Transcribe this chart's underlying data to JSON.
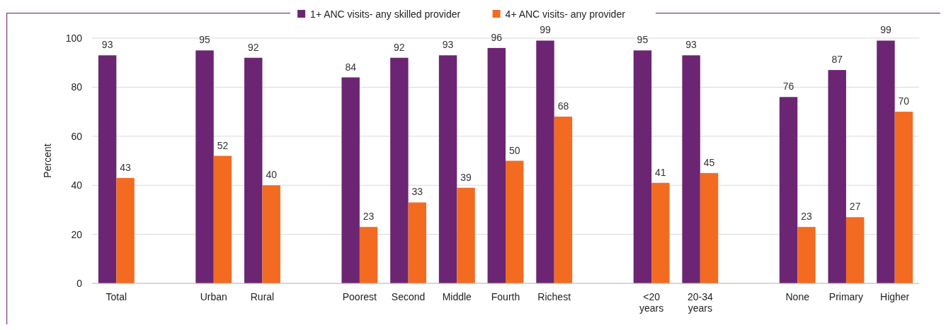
{
  "chart_data": {
    "type": "bar",
    "ylabel": "Percent",
    "categories": [
      "Total",
      null,
      "Urban",
      "Rural",
      null,
      "Poorest",
      "Second",
      "Middle",
      "Fourth",
      "Richest",
      null,
      "<20 years",
      "20-34 years",
      null,
      "None",
      "Primary",
      "Higher"
    ],
    "series": [
      {
        "name": "1+ ANC visits- any skilled provider",
        "color": "#6b2573",
        "values": [
          93,
          null,
          95,
          92,
          null,
          84,
          92,
          93,
          96,
          99,
          null,
          95,
          93,
          null,
          76,
          87,
          99
        ]
      },
      {
        "name": "4+ ANC visits- any provider",
        "color": "#f26b21",
        "values": [
          43,
          null,
          52,
          40,
          null,
          23,
          33,
          39,
          50,
          68,
          null,
          41,
          45,
          null,
          23,
          27,
          70
        ]
      }
    ],
    "ylim": [
      0,
      100
    ],
    "yticks": [
      0,
      20,
      40,
      60,
      80,
      100
    ],
    "grid": "y",
    "legend": "top",
    "data_labels": true
  }
}
